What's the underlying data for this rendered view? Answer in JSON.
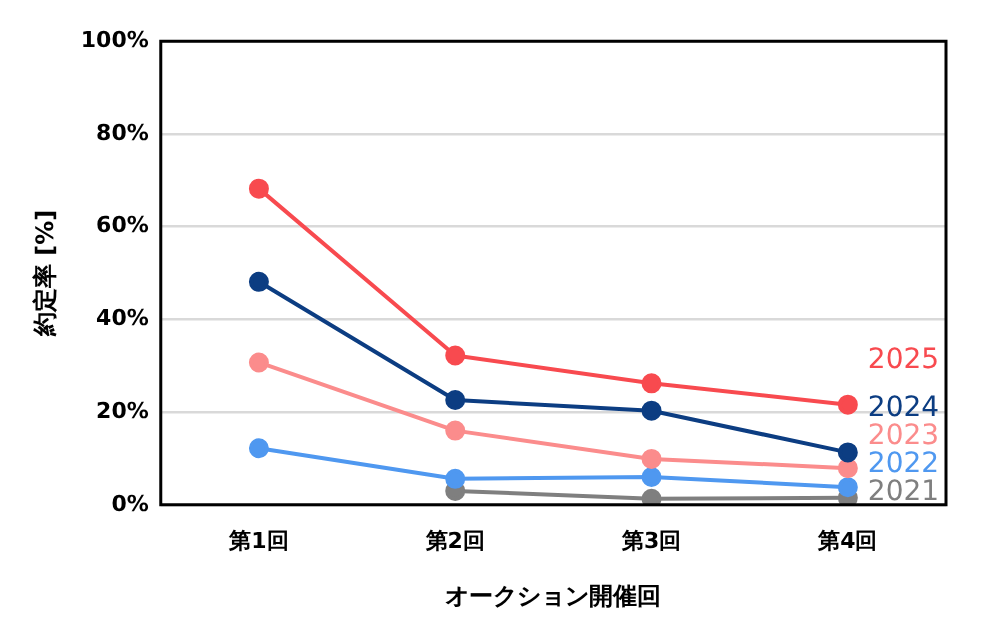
{
  "chart_data": {
    "type": "line",
    "xlabel": "オークション開催回",
    "ylabel": "約定率 [%]",
    "categories": [
      "第1回",
      "第2回",
      "第3回",
      "第4回"
    ],
    "series": [
      {
        "name": "2025",
        "color": "#f84a4f",
        "values": [
          68.2,
          32.2,
          26.2,
          21.6
        ]
      },
      {
        "name": "2024",
        "color": "#0c3d82",
        "values": [
          48.1,
          22.6,
          20.3,
          11.3
        ]
      },
      {
        "name": "2023",
        "color": "#fb8c8c",
        "values": [
          30.7,
          16.0,
          9.9,
          7.9
        ]
      },
      {
        "name": "2022",
        "color": "#4f98f0",
        "values": [
          12.2,
          5.6,
          6.0,
          3.8
        ]
      },
      {
        "name": "2021",
        "color": "#7f7f7f",
        "values": [
          null,
          3.0,
          1.3,
          1.5
        ]
      }
    ],
    "ylim": [
      0,
      100
    ],
    "yticks": [
      {
        "value": 0,
        "label": "0%"
      },
      {
        "value": 20,
        "label": "20%"
      },
      {
        "value": 40,
        "label": "40%"
      },
      {
        "value": 60,
        "label": "60%"
      },
      {
        "value": 80,
        "label": "80%"
      },
      {
        "value": 100,
        "label": "100%"
      }
    ],
    "grid": "y",
    "legend": false,
    "marker": "circle",
    "line_style": "solid"
  }
}
